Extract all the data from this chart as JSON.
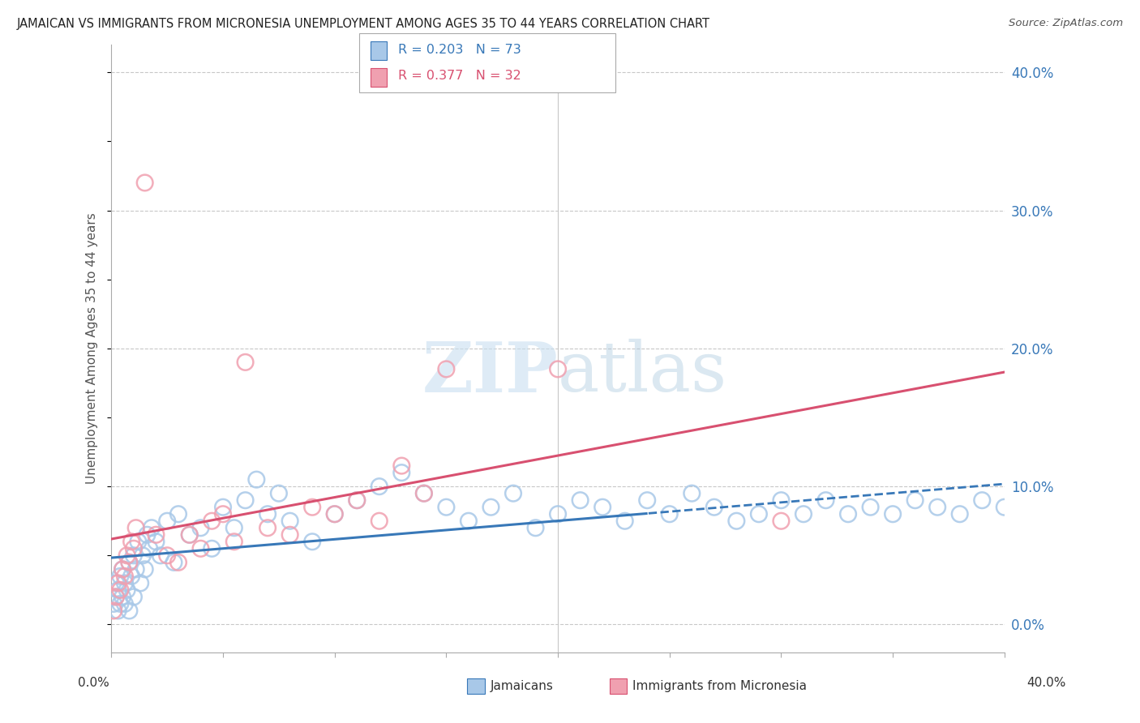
{
  "title": "JAMAICAN VS IMMIGRANTS FROM MICRONESIA UNEMPLOYMENT AMONG AGES 35 TO 44 YEARS CORRELATION CHART",
  "source": "Source: ZipAtlas.com",
  "ylabel": "Unemployment Among Ages 35 to 44 years",
  "ytick_vals": [
    0,
    10,
    20,
    30,
    40
  ],
  "xlim": [
    0,
    40
  ],
  "ylim": [
    -2,
    42
  ],
  "legend1_R": "0.203",
  "legend1_N": "73",
  "legend2_R": "0.377",
  "legend2_N": "32",
  "blue_color": "#a8c8e8",
  "pink_color": "#f0a0b0",
  "blue_line_color": "#3878b8",
  "pink_line_color": "#d85070",
  "legend_label1": "Jamaicans",
  "legend_label2": "Immigrants from Micronesia",
  "watermark_zip": "ZIP",
  "watermark_atlas": "atlas",
  "jamaican_x": [
    0.1,
    0.2,
    0.2,
    0.3,
    0.3,
    0.4,
    0.4,
    0.5,
    0.5,
    0.6,
    0.6,
    0.7,
    0.8,
    0.8,
    0.9,
    1.0,
    1.0,
    1.1,
    1.2,
    1.3,
    1.4,
    1.5,
    1.6,
    1.7,
    1.8,
    2.0,
    2.2,
    2.5,
    2.8,
    3.0,
    3.5,
    4.0,
    4.5,
    5.0,
    5.5,
    6.0,
    6.5,
    7.0,
    7.5,
    8.0,
    9.0,
    10.0,
    11.0,
    12.0,
    13.0,
    14.0,
    15.0,
    16.0,
    17.0,
    18.0,
    19.0,
    20.0,
    21.0,
    22.0,
    23.0,
    24.0,
    25.0,
    26.0,
    27.0,
    28.0,
    29.0,
    30.0,
    31.0,
    32.0,
    33.0,
    34.0,
    35.0,
    36.0,
    37.0,
    38.0,
    39.0,
    40.0,
    41.0
  ],
  "jamaican_y": [
    1.5,
    2.0,
    3.0,
    1.0,
    2.5,
    3.5,
    1.5,
    4.0,
    2.0,
    3.0,
    1.5,
    2.5,
    4.5,
    1.0,
    3.5,
    5.0,
    2.0,
    4.0,
    6.0,
    3.0,
    5.0,
    4.0,
    6.5,
    5.5,
    7.0,
    6.0,
    5.0,
    7.5,
    4.5,
    8.0,
    6.5,
    7.0,
    5.5,
    8.5,
    7.0,
    9.0,
    10.5,
    8.0,
    9.5,
    7.5,
    6.0,
    8.0,
    9.0,
    10.0,
    11.0,
    9.5,
    8.5,
    7.5,
    8.5,
    9.5,
    7.0,
    8.0,
    9.0,
    8.5,
    7.5,
    9.0,
    8.0,
    9.5,
    8.5,
    7.5,
    8.0,
    9.0,
    8.0,
    9.0,
    8.0,
    8.5,
    8.0,
    9.0,
    8.5,
    8.0,
    9.0,
    8.5,
    9.0
  ],
  "micronesia_x": [
    0.1,
    0.2,
    0.3,
    0.4,
    0.5,
    0.6,
    0.7,
    0.8,
    0.9,
    1.0,
    1.1,
    1.5,
    2.0,
    2.5,
    3.0,
    3.5,
    4.0,
    4.5,
    5.0,
    5.5,
    6.0,
    7.0,
    8.0,
    9.0,
    10.0,
    11.0,
    12.0,
    13.0,
    14.0,
    15.0,
    20.0,
    30.0
  ],
  "micronesia_y": [
    1.0,
    2.0,
    3.0,
    2.5,
    4.0,
    3.5,
    5.0,
    4.5,
    6.0,
    5.5,
    7.0,
    32.0,
    6.5,
    5.0,
    4.5,
    6.5,
    5.5,
    7.5,
    8.0,
    6.0,
    19.0,
    7.0,
    6.5,
    8.5,
    8.0,
    9.0,
    7.5,
    11.5,
    9.5,
    18.5,
    18.5,
    7.5
  ],
  "dash_start_x": 24.0
}
